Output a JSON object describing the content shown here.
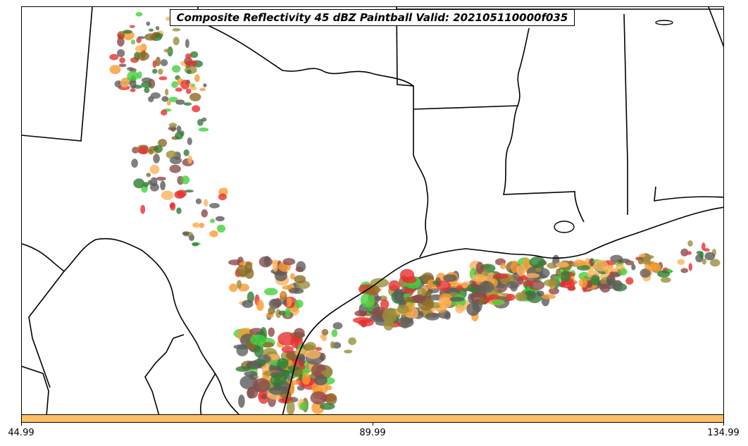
{
  "title": "Composite Reflectivity 45 dBZ Paintball Valid: 202105110000f035",
  "colorbar": {
    "color": "#fdbf63",
    "ticks": [
      "44.99",
      "89.99",
      "134.99"
    ]
  },
  "paintball_colors": [
    "#e8302f",
    "#f99a30",
    "#fdb35c",
    "#42d13c",
    "#2e7d32",
    "#5a5a5a",
    "#8b6a25",
    "#8c4a4a",
    "#9a8f3a",
    "#606060"
  ],
  "map": {
    "features": [
      "state-borders",
      "coastline",
      "international-border",
      "reflectivity-paintballs"
    ]
  }
}
